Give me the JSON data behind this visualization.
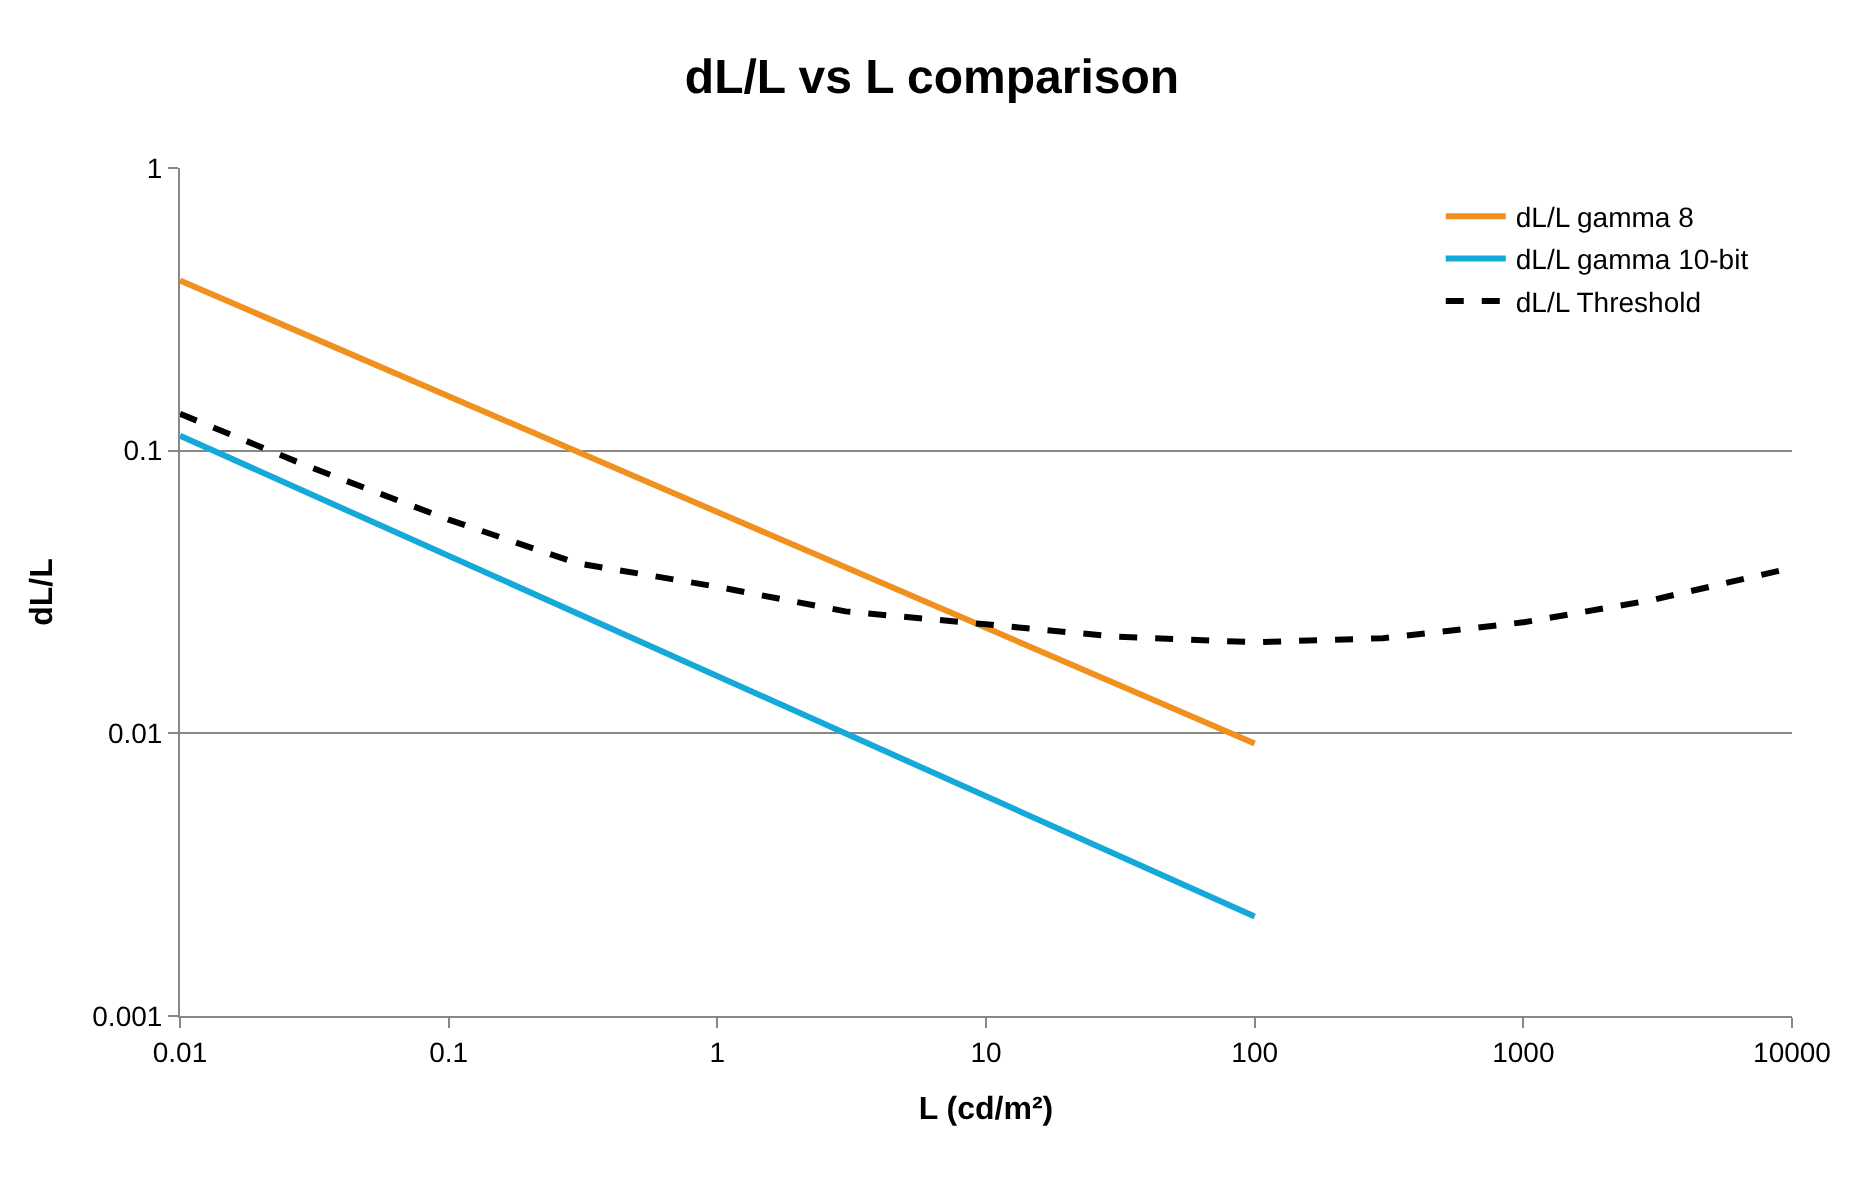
{
  "chart_data": {
    "type": "line",
    "title": "dL/L vs L comparison",
    "xlabel": "L (cd/m²)",
    "ylabel": "dL/L",
    "log": "xy",
    "xlim": [
      0.01,
      10000
    ],
    "xticks": [
      0.01,
      0.1,
      1,
      10,
      100,
      1000,
      10000
    ],
    "ylim": [
      0.001,
      1
    ],
    "yticks": [
      0.001,
      0.01,
      0.1,
      1
    ],
    "grid": "y",
    "legend": "top right",
    "marker": "none",
    "series": [
      {
        "name": "dL/L gamma 8",
        "color": "#f0901e",
        "line_style": "solid",
        "x": [
          0.01,
          100
        ],
        "values": [
          0.4,
          0.0092
        ]
      },
      {
        "name": "dL/L gamma 10-bit",
        "color": "#14a9d8",
        "line_style": "solid",
        "x": [
          0.01,
          100
        ],
        "values": [
          0.113,
          0.00225
        ]
      },
      {
        "name": "dL/L Threshold",
        "color": "#000000",
        "line_style": "dashed",
        "x": [
          0.01,
          0.03,
          0.1,
          0.3,
          1,
          3,
          10,
          30,
          100,
          300,
          1000,
          3000,
          10000
        ],
        "values": [
          0.135,
          0.088,
          0.057,
          0.04,
          0.033,
          0.027,
          0.0243,
          0.022,
          0.021,
          0.0217,
          0.0247,
          0.0296,
          0.0385
        ]
      }
    ]
  }
}
